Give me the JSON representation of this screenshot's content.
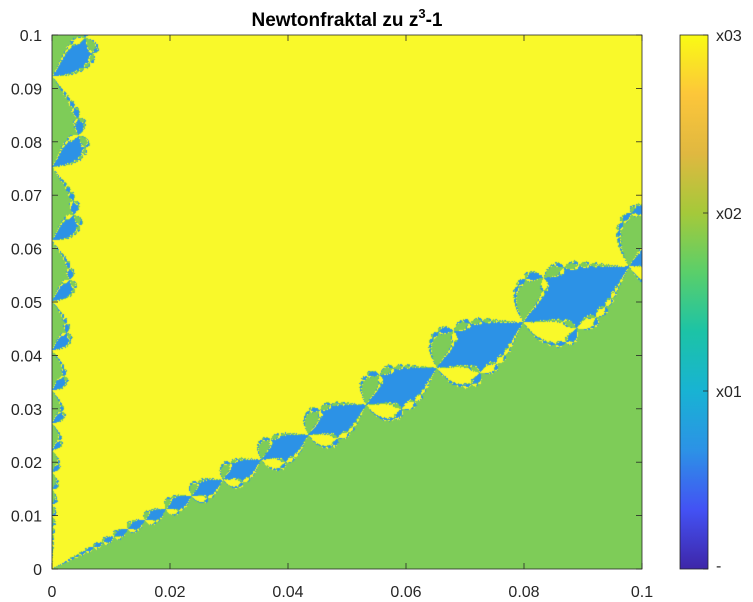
{
  "chart_data": {
    "type": "heatmap",
    "title": "Newtonfraktal zu z",
    "title_superscript": "3",
    "title_suffix": "-1",
    "xlabel": "",
    "ylabel": "",
    "xlim": [
      0,
      0.1
    ],
    "ylim": [
      0,
      0.1
    ],
    "x_ticks": [
      0,
      0.02,
      0.04,
      0.06,
      0.08,
      0.1
    ],
    "x_tick_labels": [
      "0",
      "0.02",
      "0.04",
      "0.06",
      "0.08",
      "0.1"
    ],
    "y_ticks": [
      0,
      0.01,
      0.02,
      0.03,
      0.04,
      0.05,
      0.06,
      0.07,
      0.08,
      0.09,
      0.1
    ],
    "y_tick_labels": [
      "0",
      "0.01",
      "0.02",
      "0.03",
      "0.04",
      "0.05",
      "0.06",
      "0.07",
      "0.08",
      "0.09",
      "0.1"
    ],
    "regions": [
      {
        "name": "x01",
        "color": "#2c92e6"
      },
      {
        "name": "x02",
        "color": "#7ecc58"
      },
      {
        "name": "x03",
        "color": "#f9f92a"
      }
    ],
    "colorbar": {
      "tick_labels": [
        "-",
        "x01",
        "x02",
        "x03"
      ],
      "colormap": "parula",
      "gradient": [
        "#3e26a8",
        "#4352f4",
        "#2c92e6",
        "#18b3d3",
        "#1cc3a6",
        "#5acf6a",
        "#a5c93a",
        "#e0b840",
        "#fcc63a",
        "#f9fb14"
      ]
    },
    "grid": false,
    "legend_position": "colorbar-right"
  }
}
